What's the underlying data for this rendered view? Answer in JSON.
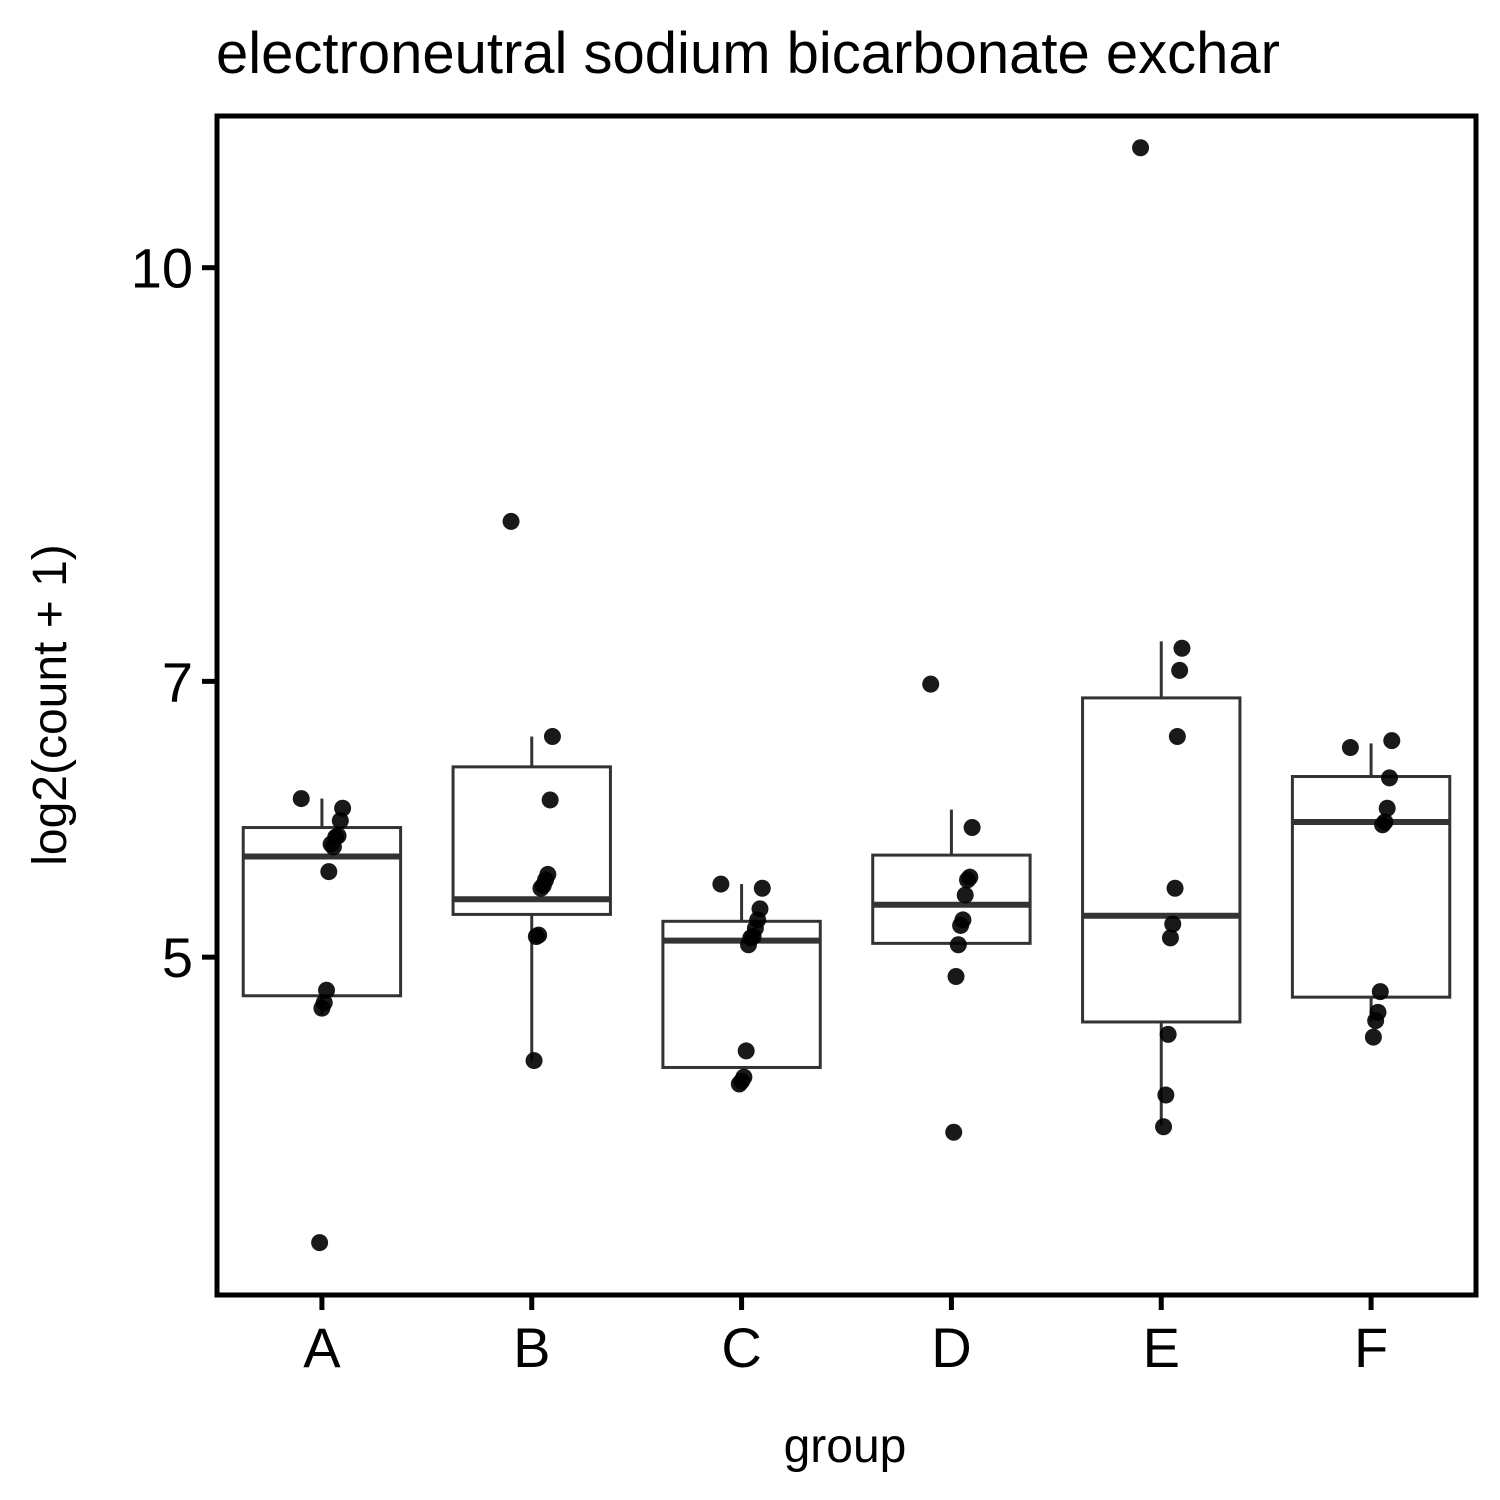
{
  "chart_data": {
    "type": "box",
    "title": "electroneutral sodium bicarbonate exchar",
    "xlabel": "group",
    "ylabel": "log2(count + 1)",
    "ylim": [
      2.55,
      11.1
    ],
    "yticks": [
      5,
      7,
      10
    ],
    "grid": false,
    "legend": "none",
    "categories": [
      "A",
      "B",
      "C",
      "D",
      "E",
      "F"
    ],
    "boxes": [
      {
        "group": "A",
        "q1": 4.72,
        "median": 5.73,
        "q3": 5.94,
        "whisker_low": 4.58,
        "whisker_high": 6.15
      },
      {
        "group": "B",
        "q1": 5.31,
        "median": 5.42,
        "q3": 6.38,
        "whisker_low": 4.25,
        "whisker_high": 6.6
      },
      {
        "group": "C",
        "q1": 4.2,
        "median": 5.12,
        "q3": 5.26,
        "whisker_low": 4.2,
        "whisker_high": 5.53
      },
      {
        "group": "D",
        "q1": 5.1,
        "median": 5.38,
        "q3": 5.74,
        "whisker_low": 5.1,
        "whisker_high": 6.07
      },
      {
        "group": "E",
        "q1": 4.53,
        "median": 5.3,
        "q3": 6.88,
        "whisker_low": 3.78,
        "whisker_high": 7.29
      },
      {
        "group": "F",
        "q1": 4.71,
        "median": 5.98,
        "q3": 6.31,
        "whisker_low": 4.53,
        "whisker_high": 6.55
      }
    ],
    "points": [
      {
        "group": "A",
        "values": [
          6.15,
          6.08,
          5.99,
          5.88,
          5.87,
          5.8,
          5.82,
          5.62,
          4.76,
          4.67,
          4.63,
          2.93
        ]
      },
      {
        "group": "B",
        "values": [
          8.16,
          6.6,
          6.14,
          5.6,
          5.56,
          5.52,
          5.5,
          5.16,
          5.15,
          4.25
        ]
      },
      {
        "group": "C",
        "values": [
          5.53,
          5.5,
          5.35,
          5.27,
          5.21,
          5.15,
          5.14,
          5.09,
          4.32,
          4.13,
          4.1,
          4.08
        ]
      },
      {
        "group": "D",
        "values": [
          6.98,
          5.94,
          5.58,
          5.56,
          5.45,
          5.27,
          5.23,
          5.09,
          4.86,
          3.73
        ]
      },
      {
        "group": "E",
        "values": [
          10.87,
          7.24,
          7.08,
          6.6,
          5.5,
          5.24,
          5.14,
          4.44,
          4.0,
          3.77
        ]
      },
      {
        "group": "F",
        "values": [
          6.52,
          6.57,
          6.3,
          6.08,
          5.98,
          5.96,
          4.75,
          4.6,
          4.54,
          4.42
        ]
      }
    ]
  }
}
